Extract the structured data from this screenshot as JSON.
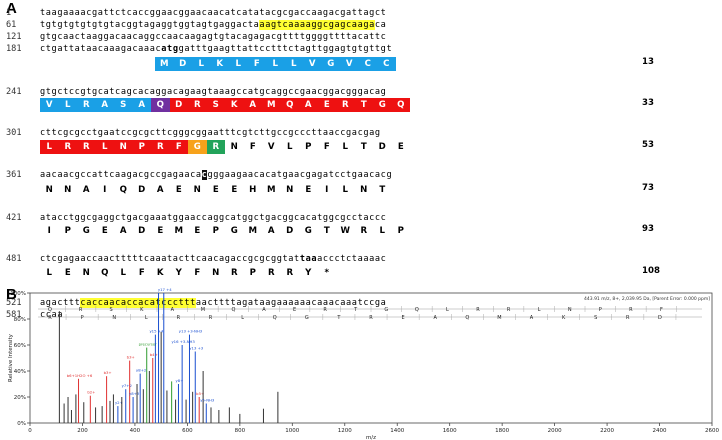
{
  "panelA": {
    "label": "A",
    "lines": [
      {
        "num": "1",
        "segments": [
          {
            "t": "taagaaaacgattctcaccggaacggaacaacatcatatacgcgaccaagacgattagct"
          }
        ]
      },
      {
        "num": "61",
        "segments": [
          {
            "t": "tgtgtgtgtgtgtacggtagaggtggtagtgaggacta"
          },
          {
            "t": "aagtcaaaaggcgagcaaga",
            "hl": true
          },
          {
            "t": "ca"
          }
        ]
      },
      {
        "num": "121",
        "segments": [
          {
            "t": "gtgcaactaaggacaacaggccaacaagagtgtacagagacgttttggggttttacattc"
          }
        ]
      },
      {
        "num": "181",
        "segments": [
          {
            "t": "ctgattataacaaagacaaac"
          },
          {
            "t": "atg",
            "b": true
          },
          {
            "t": "gatttgaagttattcctttctagttggagtgtgttgt"
          }
        ]
      },
      {
        "num": "241",
        "segments": [
          {
            "t": "gtgctccgtgcatcagcacaggacagaagtaaagccatgcaggccgaacggacgggacag"
          }
        ]
      },
      {
        "num": "301",
        "segments": [
          {
            "t": "cttcgcgcctgaatccgcgcttcgggcggaatttcgtcttgccgcccttaaccgacgag"
          }
        ]
      },
      {
        "num": "361",
        "segments": [
          {
            "t": "aacaacgccattcaagacgccgagaaca"
          },
          {
            "t": "c",
            "b": true
          },
          {
            "t": "gggaagaacacatgaacgagatcctgaacacg"
          }
        ]
      },
      {
        "num": "421",
        "segments": [
          {
            "t": "atacctggcgaggctgacgaaatggaaccaggcatggctgacggcacatggcgcctaccc"
          }
        ]
      },
      {
        "num": "481",
        "segments": [
          {
            "t": "ctcgagaaccaactttttcaaatacttcaacagaccgcgcggtat"
          },
          {
            "t": "taa",
            "b": true
          },
          {
            "t": "accctctaaaac"
          }
        ]
      },
      {
        "num": "521",
        "segments": [
          {
            "t": "agacttt"
          },
          {
            "t": "caccaacaccacatcccttt",
            "hl": true
          },
          {
            "t": "aacttttagataagaaaaaacaaacaaatccga"
          }
        ]
      },
      {
        "num": "581",
        "segments": [
          {
            "t": "ccaa"
          }
        ]
      }
    ],
    "aa_rows": [
      {
        "end": "13",
        "residues": [
          "M",
          "D",
          "L",
          "K",
          "L",
          "F",
          "L",
          "L",
          "V",
          "G",
          "V",
          "C",
          "C"
        ]
      },
      {
        "end": "33",
        "residues": [
          "V",
          "L",
          "R",
          "A",
          "S",
          "A",
          "Q",
          "D",
          "R",
          "S",
          "K",
          "A",
          "M",
          "Q",
          "A",
          "E",
          "R",
          "T",
          "G",
          "Q"
        ]
      },
      {
        "end": "53",
        "residues": [
          "L",
          "R",
          "R",
          "L",
          "N",
          "P",
          "R",
          "F",
          "G",
          "R",
          "N",
          "F",
          "V",
          "L",
          "P",
          "F",
          "L",
          "T",
          "D",
          "E"
        ]
      },
      {
        "end": "73",
        "residues": [
          "N",
          "N",
          "A",
          "I",
          "Q",
          "D",
          "A",
          "E",
          "N",
          "E",
          "E",
          "H",
          "M",
          "N",
          "E",
          "I",
          "L",
          "N",
          "T"
        ]
      },
      {
        "end": "93",
        "residues": [
          "I",
          "P",
          "G",
          "E",
          "A",
          "D",
          "E",
          "M",
          "E",
          "P",
          "G",
          "M",
          "A",
          "D",
          "G",
          "T",
          "W",
          "R",
          "L",
          "P"
        ]
      },
      {
        "end": "108",
        "residues": [
          "L",
          "E",
          "N",
          "Q",
          "L",
          "F",
          "K",
          "Y",
          "F",
          "N",
          "R",
          "P",
          "R",
          "R",
          "Y",
          "*"
        ]
      }
    ],
    "colors": {
      "signal": "#1aa0e6",
      "glutamine": "#7030a0",
      "propeptide": "#ee1111",
      "glycine": "#f7a21b",
      "arginine": "#22a35a",
      "black": "#111111",
      "highlight": "#ffff33"
    }
  },
  "panelB": {
    "label": "B",
    "header": "443.91 m/z, 8+, 2,039.95 Da, [Parent Error: 0.000 ppm]",
    "peptide_top": [
      "Q",
      "R",
      "S",
      "K",
      "A",
      "M",
      "Q",
      "A",
      "E",
      "R",
      "T",
      "G",
      "Q",
      "L",
      "R",
      "R",
      "L",
      "N",
      "P",
      "R",
      "F"
    ],
    "peptide_bottom": [
      "R",
      "P",
      "N",
      "L",
      "R",
      "R",
      "L",
      "Q",
      "G",
      "T",
      "R",
      "E",
      "A",
      "Q",
      "M",
      "A",
      "K",
      "S",
      "R",
      "D"
    ],
    "chart_data": {
      "type": "bar",
      "xlabel": "m/z",
      "ylabel": "Relative Intensity",
      "xlim": [
        0,
        2600
      ],
      "ylim": [
        0,
        100
      ],
      "xticks": [
        0,
        200,
        400,
        600,
        800,
        1000,
        1200,
        1400,
        1600,
        1800,
        2000,
        2200,
        2400,
        2600
      ],
      "yticks": [
        "0%",
        "20%",
        "40%",
        "60%",
        "80%",
        "100%"
      ],
      "peaks": [
        {
          "x": 112,
          "y": 86,
          "c": "#333333"
        },
        {
          "x": 130,
          "y": 15,
          "c": "#333333"
        },
        {
          "x": 145,
          "y": 20,
          "c": "#333333"
        },
        {
          "x": 158,
          "y": 10,
          "c": "#333333"
        },
        {
          "x": 175,
          "y": 22,
          "c": "#333333"
        },
        {
          "x": 185,
          "y": 34,
          "c": "#e03030",
          "label": "b6+1H2O +6"
        },
        {
          "x": 205,
          "y": 16,
          "c": "#333333"
        },
        {
          "x": 230,
          "y": 21,
          "c": "#e03030",
          "label": "b2+"
        },
        {
          "x": 250,
          "y": 12,
          "c": "#333333"
        },
        {
          "x": 275,
          "y": 13,
          "c": "#333333"
        },
        {
          "x": 292,
          "y": 36,
          "c": "#e03030",
          "label": "b3+"
        },
        {
          "x": 305,
          "y": 17,
          "c": "#333333"
        },
        {
          "x": 318,
          "y": 22,
          "c": "#333333"
        },
        {
          "x": 335,
          "y": 13,
          "c": "#1a4fd0",
          "label": "y2+"
        },
        {
          "x": 350,
          "y": 20,
          "c": "#333333"
        },
        {
          "x": 365,
          "y": 26,
          "c": "#1a4fd0",
          "label": "y7+2"
        },
        {
          "x": 380,
          "y": 48,
          "c": "#e03030",
          "label": "b3+"
        },
        {
          "x": 393,
          "y": 20,
          "c": "#1a4fd0",
          "label": "y8+3"
        },
        {
          "x": 408,
          "y": 30,
          "c": "#333333"
        },
        {
          "x": 420,
          "y": 38,
          "c": "#1a4fd0",
          "label": "y8+2"
        },
        {
          "x": 432,
          "y": 26,
          "c": "#333333"
        },
        {
          "x": 445,
          "y": 58,
          "c": "#2e9b2e",
          "label": "precursor"
        },
        {
          "x": 455,
          "y": 40,
          "c": "#333333"
        },
        {
          "x": 468,
          "y": 50,
          "c": "#e03030",
          "label": "b4+"
        },
        {
          "x": 478,
          "y": 68,
          "c": "#1a4fd0",
          "label": "y15 +4"
        },
        {
          "x": 490,
          "y": 100,
          "c": "#1a4fd0"
        },
        {
          "x": 500,
          "y": 70,
          "c": "#333333"
        },
        {
          "x": 510,
          "y": 100,
          "c": "#1a4fd0",
          "label": "y17 +4"
        },
        {
          "x": 522,
          "y": 25,
          "c": "#333333"
        },
        {
          "x": 540,
          "y": 32,
          "c": "#2e9b2e"
        },
        {
          "x": 555,
          "y": 18,
          "c": "#333333"
        },
        {
          "x": 566,
          "y": 30,
          "c": "#1a4fd0",
          "label": "y8+"
        },
        {
          "x": 580,
          "y": 60,
          "c": "#1a4fd0",
          "label": "y16 +3-NH3"
        },
        {
          "x": 595,
          "y": 18,
          "c": "#333333"
        },
        {
          "x": 608,
          "y": 68,
          "c": "#1a4fd0",
          "label": "y13 +3-NH3"
        },
        {
          "x": 620,
          "y": 24,
          "c": "#333333"
        },
        {
          "x": 630,
          "y": 55,
          "c": "#1a4fd0",
          "label": "y13 +3"
        },
        {
          "x": 645,
          "y": 20,
          "c": "#e03030",
          "label": "b5+"
        },
        {
          "x": 660,
          "y": 40,
          "c": "#333333"
        },
        {
          "x": 672,
          "y": 15,
          "c": "#1a4fd0",
          "label": "y5-NH3"
        },
        {
          "x": 690,
          "y": 12,
          "c": "#333333"
        },
        {
          "x": 720,
          "y": 10,
          "c": "#333333"
        },
        {
          "x": 760,
          "y": 12,
          "c": "#333333"
        },
        {
          "x": 800,
          "y": 7,
          "c": "#333333"
        },
        {
          "x": 890,
          "y": 11,
          "c": "#333333"
        },
        {
          "x": 945,
          "y": 24,
          "c": "#333333"
        }
      ]
    }
  }
}
